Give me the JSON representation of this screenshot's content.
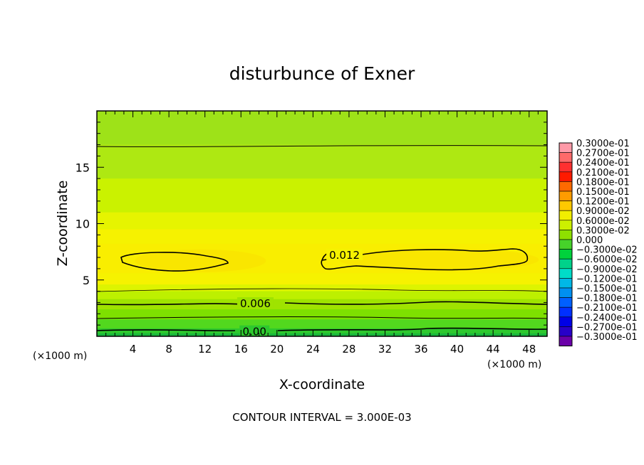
{
  "chart_data": {
    "type": "contour",
    "title": "disturbunce of Exner",
    "xlabel": "X-coordinate",
    "ylabel": "Z-coordinate",
    "x_unit_left": "(×1000 m)",
    "x_unit_right": "(×1000 m)",
    "xlim": [
      0,
      50
    ],
    "ylim": [
      0,
      20
    ],
    "x_ticks": [
      "4",
      "8",
      "12",
      "16",
      "20",
      "24",
      "28",
      "32",
      "36",
      "40",
      "44",
      "48"
    ],
    "y_ticks": [
      "5",
      "10",
      "15"
    ],
    "contour_interval_text": "CONTOUR INTERVAL = 3.000E-03",
    "contour_labels": [
      {
        "text": "0.012",
        "x": 27.5,
        "z": 7.2
      },
      {
        "text": "0.006",
        "x": 17.6,
        "z": 2.9
      },
      {
        "text": "0.00",
        "x": 17.5,
        "z": 0.4
      }
    ],
    "zones": [
      {
        "z": 20,
        "color": "#9ee218"
      },
      {
        "z": 17,
        "color": "#aee812"
      },
      {
        "z": 14,
        "color": "#caf200"
      },
      {
        "z": 11,
        "color": "#e6f400"
      },
      {
        "z": 9.5,
        "color": "#f6f200"
      },
      {
        "z": 8.2,
        "color": "#f9ee00"
      },
      {
        "z": 5.6,
        "color": "#f6f200"
      },
      {
        "z": 4.6,
        "color": "#ddf400"
      },
      {
        "z": 4.0,
        "color": "#bdf000"
      },
      {
        "z": 3.3,
        "color": "#9fe300"
      },
      {
        "z": 2.4,
        "color": "#7ee000"
      },
      {
        "z": 1.5,
        "color": "#52d81e"
      },
      {
        "z": 0.7,
        "color": "#2ec82e"
      },
      {
        "z": 0.25,
        "color": "#19b83c"
      }
    ],
    "legend": [
      {
        "label": "0.3000e-01",
        "color": "#ff9aa8"
      },
      {
        "label": "0.2700e-01",
        "color": "#ff6a6a"
      },
      {
        "label": "0.2400e-01",
        "color": "#ff3030"
      },
      {
        "label": "0.2100e-01",
        "color": "#ff1a00"
      },
      {
        "label": "0.1800e-01",
        "color": "#ff6a00"
      },
      {
        "label": "0.1500e-01",
        "color": "#ff9c00"
      },
      {
        "label": "0.1200e-01",
        "color": "#ffc800"
      },
      {
        "label": "0.9000e-02",
        "color": "#f2ee00"
      },
      {
        "label": "0.6000e-02",
        "color": "#ccf000"
      },
      {
        "label": "0.3000e-02",
        "color": "#8ee000"
      },
      {
        "label": "0.000",
        "color": "#46d22a"
      },
      {
        "label": "−0.3000e-02",
        "color": "#00d23c"
      },
      {
        "label": "−0.6000e-02",
        "color": "#00d28a"
      },
      {
        "label": "−0.9000e-02",
        "color": "#00dcc8"
      },
      {
        "label": "−0.1200e-01",
        "color": "#00b8e6"
      },
      {
        "label": "−0.1500e-01",
        "color": "#0090f0"
      },
      {
        "label": "−0.1800e-01",
        "color": "#0060ff"
      },
      {
        "label": "−0.2100e-01",
        "color": "#0030ff"
      },
      {
        "label": "−0.2400e-01",
        "color": "#0000e6"
      },
      {
        "label": "−0.2700e-01",
        "color": "#2800c8"
      },
      {
        "label": "−0.3000e-01",
        "color": "#6a00a8"
      }
    ]
  }
}
